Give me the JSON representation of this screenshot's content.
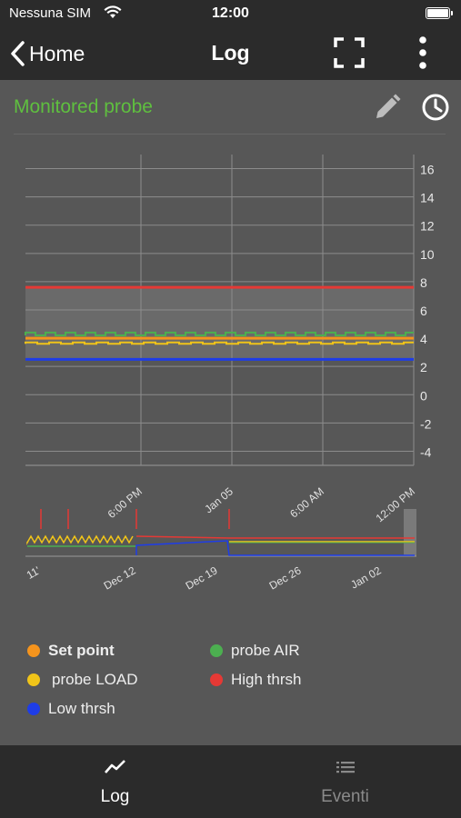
{
  "status": {
    "carrier": "Nessuna SIM",
    "time": "12:00"
  },
  "nav": {
    "back_label": "Home",
    "title": "Log"
  },
  "header": {
    "title": "Monitored probe"
  },
  "colors": {
    "set_point": "#f5941d",
    "probe_air": "#4caf50",
    "probe_load": "#f0c419",
    "high_thrsh": "#e53935",
    "low_thrsh": "#1e3de8"
  },
  "chart_data": [
    {
      "type": "line",
      "x_ticks": [
        "6:00 PM",
        "Jan 05",
        "6:00 AM",
        "12:00 PM"
      ],
      "y_ticks": [
        "16",
        "14",
        "12",
        "10",
        "8",
        "6",
        "4",
        "2",
        "0",
        "-2",
        "-4"
      ],
      "ylim": [
        -5,
        17
      ],
      "grid": true,
      "series": [
        {
          "name": "High thrsh",
          "values": [
            7.6,
            7.6,
            7.6,
            7.6,
            7.6
          ]
        },
        {
          "name": "Set point",
          "values": [
            4.0,
            4.0,
            4.0,
            4.0,
            4.0
          ]
        },
        {
          "name": "probe AIR",
          "values": [
            4.2,
            4.4,
            4.2,
            4.4,
            4.2
          ]
        },
        {
          "name": "probe LOAD",
          "values": [
            3.6,
            3.7,
            3.6,
            3.7,
            3.6
          ]
        },
        {
          "name": "Low thrsh",
          "values": [
            2.5,
            2.5,
            2.5,
            2.5,
            2.5
          ]
        }
      ]
    },
    {
      "type": "line",
      "x_ticks": [
        "11'",
        "Dec 12",
        "Dec 19",
        "Dec 26",
        "Jan 02"
      ]
    }
  ],
  "legend": [
    {
      "label": "Set point",
      "color": "#f5941d"
    },
    {
      "label": "probe AIR",
      "color": "#4caf50"
    },
    {
      "label": "probe LOAD",
      "color": "#f0c419"
    },
    {
      "label": "High thrsh",
      "color": "#e53935"
    },
    {
      "label": "Low thrsh",
      "color": "#1e3de8"
    }
  ],
  "tabs": [
    {
      "label": "Log",
      "icon": "chart-line-icon",
      "active": true
    },
    {
      "label": "Eventi",
      "icon": "list-icon",
      "active": false
    }
  ]
}
